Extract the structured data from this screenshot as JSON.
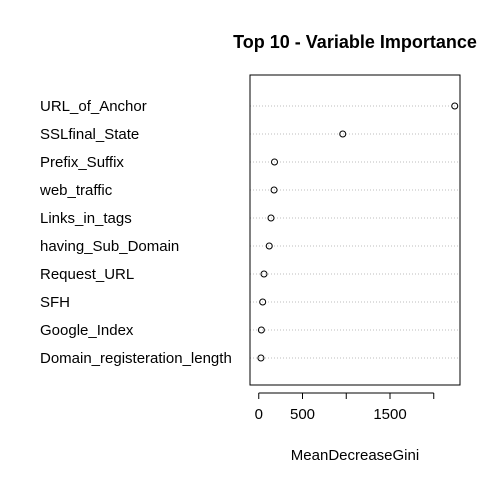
{
  "chart_data": {
    "type": "scatter",
    "title": "Top 10 - Variable Importance",
    "xlabel": "MeanDecreaseGini",
    "ylabel": "",
    "xlim": [
      -100,
      2300
    ],
    "x_ticks": [
      0,
      500,
      1500
    ],
    "x_minor_ticks": [
      1000,
      2000
    ],
    "grid": "dotted horizontal lines per variable",
    "categories": [
      "URL_of_Anchor",
      "SSLfinal_State",
      "Prefix_Suffix",
      "web_traffic",
      "Links_in_tags",
      "having_Sub_Domain",
      "Request_URL",
      "SFH",
      "Google_Index",
      "Domain_registeration_length"
    ],
    "values": [
      2240,
      960,
      180,
      175,
      140,
      120,
      60,
      45,
      30,
      25
    ]
  },
  "colors": {
    "points": "#000000",
    "grid": "#bebebe",
    "axis": "#000000"
  }
}
